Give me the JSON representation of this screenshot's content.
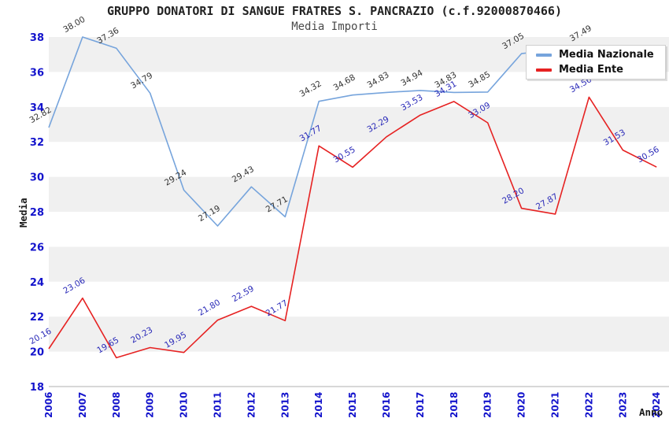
{
  "header": {
    "title": "GRUPPO DONATORI DI SANGUE FRATRES S. PANCRAZIO (c.f.92000870466)",
    "subtitle": "Media Importi"
  },
  "legend": {
    "items": [
      {
        "label": "Media Nazionale",
        "color": "#76a4dc"
      },
      {
        "label": "Media Ente",
        "color": "#e62222"
      }
    ]
  },
  "colors": {
    "axis_tick_text": "#1414cc",
    "band_gray": "#f0f0f0",
    "band_white": "#ffffff",
    "axis_line": "#b0b0b0",
    "national_line": "#76a4dc",
    "national_label_text": "#333333",
    "ente_line": "#e62222",
    "ente_label_text": "#2929b8"
  },
  "chart_data": {
    "type": "line",
    "title": "GRUPPO DONATORI DI SANGUE FRATRES S. PANCRAZIO (c.f.92000870466)",
    "subtitle": "Media Importi",
    "xlabel": "Anno",
    "ylabel": "Media",
    "ylim": [
      18,
      38
    ],
    "ytick_step": 2,
    "grid": "alternating horizontal bands, gray on 20-22/24-26/28-30/32-34/36-38",
    "legend_position": "top-right, overlapping plot and hiding Media Nazionale 2021/2023/2024 points",
    "x": [
      2006,
      2007,
      2008,
      2009,
      2010,
      2011,
      2012,
      2013,
      2014,
      2015,
      2016,
      2017,
      2018,
      2019,
      2020,
      2021,
      2022,
      2023,
      2024
    ],
    "series": [
      {
        "name": "Media Nazionale",
        "color": "#76a4dc",
        "label_color": "#333333",
        "values": [
          32.82,
          38.0,
          37.36,
          34.79,
          29.24,
          27.19,
          29.43,
          27.71,
          34.32,
          34.68,
          34.83,
          34.94,
          34.83,
          34.85,
          37.05,
          null,
          37.49,
          null,
          null
        ]
      },
      {
        "name": "Media Ente",
        "color": "#e62222",
        "label_color": "#2929b8",
        "values": [
          20.16,
          23.06,
          19.65,
          20.23,
          19.95,
          21.8,
          22.59,
          21.77,
          31.77,
          30.55,
          32.29,
          33.53,
          34.31,
          33.09,
          28.2,
          27.87,
          34.56,
          31.53,
          30.56
        ]
      }
    ]
  }
}
